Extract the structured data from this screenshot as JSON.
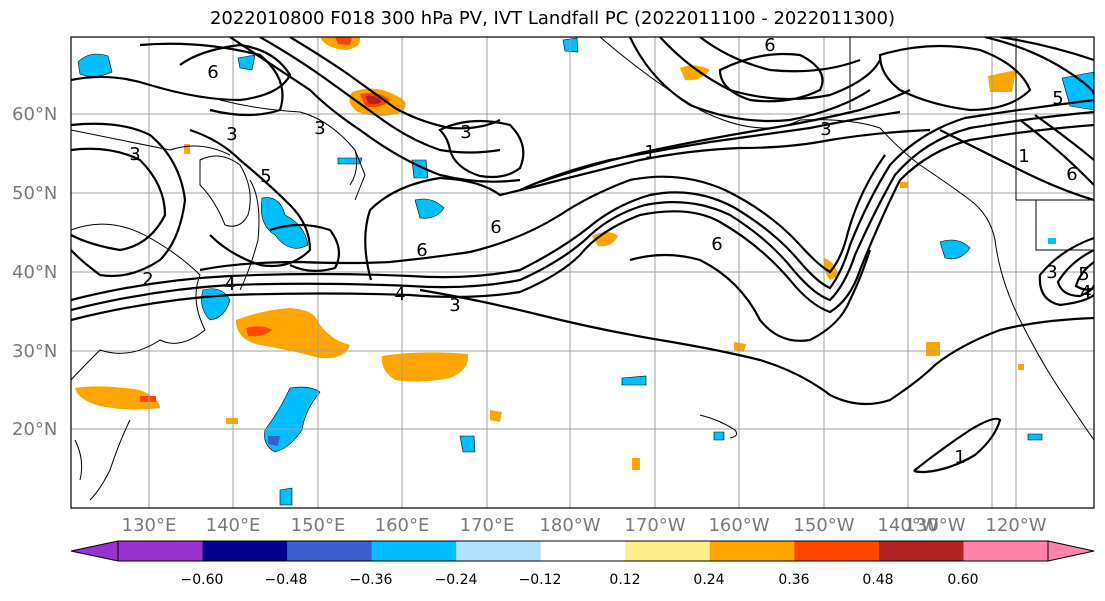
{
  "title": "2022010800 F018 300 hPa PV, IVT Landfall PC (2022011100 - 2022011300)",
  "lat_labels": [
    "60°N",
    "50°N",
    "40°N",
    "30°N",
    "20°N"
  ],
  "lon_labels": [
    "130°E",
    "140°E",
    "150°E",
    "160°E",
    "170°E",
    "180°W",
    "170°W",
    "160°W",
    "150°W",
    "140°W",
    "130°W",
    "120°W"
  ],
  "contour_labels": [
    "6",
    "6",
    "3",
    "3",
    "3",
    "5",
    "3",
    "4",
    "4",
    "3",
    "6",
    "6",
    "1",
    "3",
    "6",
    "6",
    "3",
    "4",
    "5",
    "5",
    "1",
    "1",
    "2"
  ],
  "colorbar": {
    "ticks": [
      "−0.60",
      "−0.48",
      "−0.36",
      "−0.24",
      "−0.12",
      "0.12",
      "0.24",
      "0.36",
      "0.48",
      "0.60"
    ],
    "colors": [
      "#9932cc",
      "#00008b",
      "#3a5fcd",
      "#00bfff",
      "#b0e2ff",
      "#ffffff",
      "#ffec8b",
      "#ffa500",
      "#ff4500",
      "#b22222",
      "#ff82ab"
    ]
  }
}
